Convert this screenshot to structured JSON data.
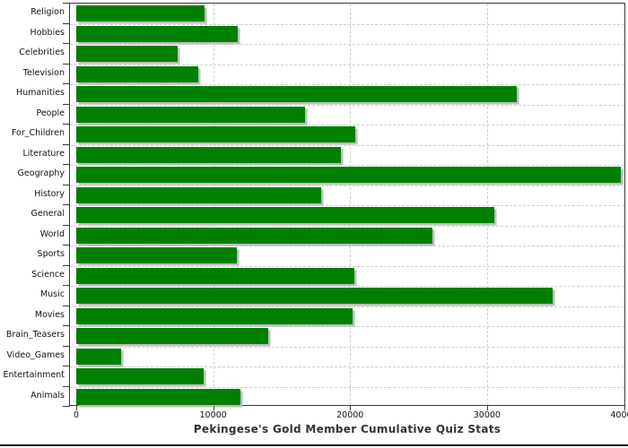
{
  "chart_data": {
    "type": "bar",
    "orientation": "horizontal",
    "title": "Pekingese's Gold Member Cumulative Quiz Stats",
    "categories": [
      "Religion",
      "Hobbies",
      "Celebrities",
      "Television",
      "Humanities",
      "People",
      "For_Children",
      "Literature",
      "Geography",
      "History",
      "General",
      "World",
      "Sports",
      "Science",
      "Music",
      "Movies",
      "Brain_Teasers",
      "Video_Games",
      "Entertainment",
      "Animals"
    ],
    "values": [
      9400,
      11800,
      7400,
      8900,
      32200,
      16700,
      20400,
      19300,
      39800,
      17900,
      30500,
      26000,
      11700,
      20300,
      34800,
      20200,
      14000,
      3300,
      9300,
      12000
    ],
    "xlim": [
      0,
      40000
    ],
    "x_ticks": [
      0,
      10000,
      20000,
      30000,
      40000
    ],
    "x_tick_labels": [
      "0",
      "10000",
      "20000",
      "30000",
      "40000"
    ],
    "grid": "dashed",
    "legend": "none",
    "colors": {
      "bar": "#008000",
      "bar_shadow": "#bdbdbd",
      "gridline": "#cfcfcf",
      "plot_border": "#3a3a3a",
      "axis_text": "#111111",
      "title_text": "#333333"
    }
  }
}
